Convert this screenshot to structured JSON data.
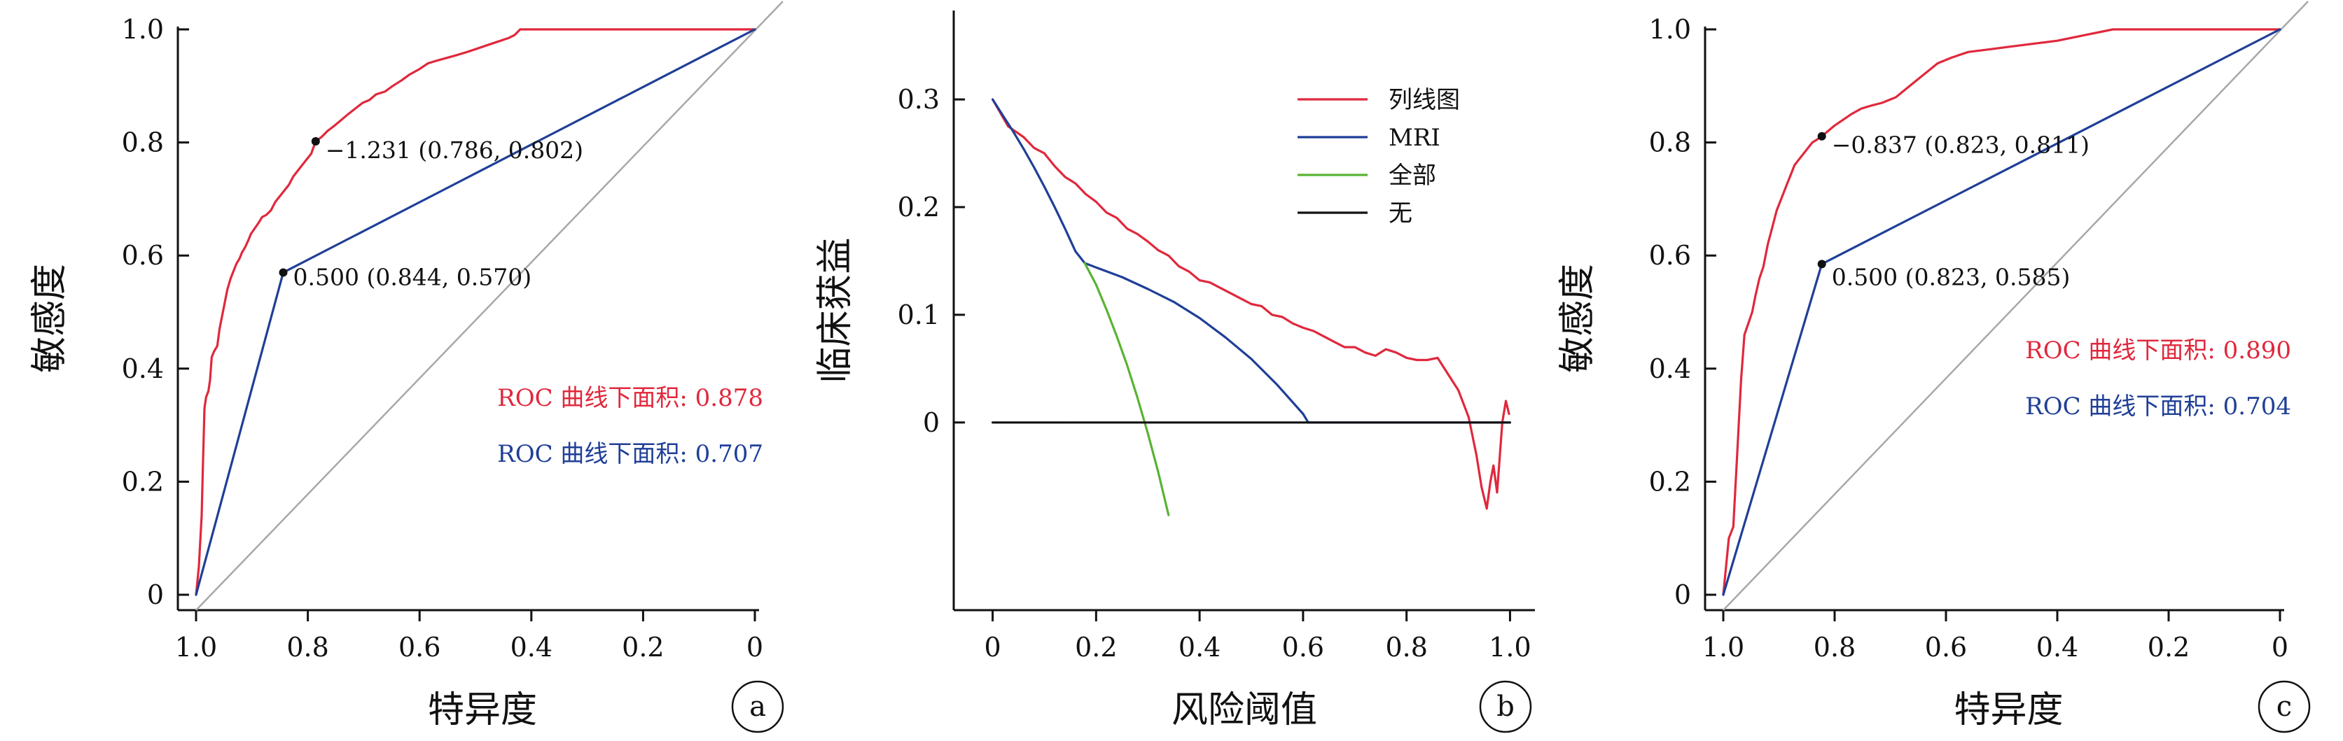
{
  "colors": {
    "red": "#e0283c",
    "blue": "#1f3f97",
    "green": "#58b432",
    "black": "#111111",
    "diag": "#a8a8a8"
  },
  "chart_data": [
    {
      "panel": "a",
      "type": "line",
      "xlabel": "特异度",
      "ylabel": "敏感度",
      "xlim": [
        1.0,
        0
      ],
      "ylim": [
        0,
        1.0
      ],
      "x_ticks": [
        1.0,
        0.8,
        0.6,
        0.4,
        0.2,
        0
      ],
      "x_tick_labels": [
        "1.0",
        "0.8",
        "0.6",
        "0.4",
        "0.2",
        "0"
      ],
      "y_ticks": [
        0,
        0.2,
        0.4,
        0.6,
        0.8,
        1.0
      ],
      "y_tick_labels": [
        "0",
        "0.2",
        "0.4",
        "0.6",
        "0.8",
        "1.0"
      ],
      "panel_label": "a",
      "series": [
        {
          "color": "#e0283c",
          "x": [
            1.0,
            0.995,
            0.99,
            0.988,
            0.985,
            0.982,
            0.978,
            0.975,
            0.972,
            0.968,
            0.962,
            0.958,
            0.952,
            0.948,
            0.944,
            0.938,
            0.932,
            0.928,
            0.922,
            0.918,
            0.912,
            0.906,
            0.902,
            0.895,
            0.888,
            0.882,
            0.874,
            0.866,
            0.858,
            0.85,
            0.842,
            0.834,
            0.826,
            0.818,
            0.81,
            0.802,
            0.794,
            0.786,
            0.775,
            0.765,
            0.752,
            0.74,
            0.728,
            0.715,
            0.702,
            0.69,
            0.678,
            0.662,
            0.648,
            0.632,
            0.618,
            0.6,
            0.585,
            0.568,
            0.55,
            0.532,
            0.515,
            0.5,
            0.485,
            0.47,
            0.455,
            0.44,
            0.43,
            0.42,
            0.3,
            0.2,
            0.1,
            0.0
          ],
          "y": [
            0.0,
            0.05,
            0.14,
            0.22,
            0.33,
            0.35,
            0.36,
            0.38,
            0.42,
            0.43,
            0.44,
            0.47,
            0.5,
            0.52,
            0.54,
            0.56,
            0.575,
            0.585,
            0.595,
            0.605,
            0.615,
            0.628,
            0.638,
            0.648,
            0.658,
            0.668,
            0.672,
            0.68,
            0.695,
            0.705,
            0.715,
            0.725,
            0.74,
            0.75,
            0.76,
            0.77,
            0.78,
            0.802,
            0.81,
            0.82,
            0.83,
            0.84,
            0.85,
            0.86,
            0.87,
            0.875,
            0.885,
            0.89,
            0.9,
            0.91,
            0.92,
            0.93,
            0.94,
            0.945,
            0.95,
            0.955,
            0.96,
            0.965,
            0.97,
            0.975,
            0.98,
            0.985,
            0.99,
            1.0,
            1.0,
            1.0,
            1.0,
            1.0
          ]
        },
        {
          "color": "#1f3f97",
          "x": [
            1.0,
            0.844,
            0.0
          ],
          "y": [
            0.0,
            0.57,
            1.0
          ]
        }
      ],
      "points": [
        {
          "x": 0.786,
          "y": 0.802,
          "label": "−1.231 (0.786, 0.802)"
        },
        {
          "x": 0.844,
          "y": 0.57,
          "label": "0.500 (0.844, 0.570)"
        }
      ],
      "auc": [
        {
          "text": "ROC 曲线下面积: 0.878",
          "color": "#e0283c"
        },
        {
          "text": "ROC 曲线下面积: 0.707",
          "color": "#1f3f97"
        }
      ]
    },
    {
      "panel": "b",
      "type": "line",
      "xlabel": "风险阈值",
      "ylabel": "临床获益",
      "xlim": [
        -0.04,
        1.04
      ],
      "ylim": [
        -0.16,
        0.38
      ],
      "x_ticks": [
        0,
        0.2,
        0.4,
        0.6,
        0.8,
        1.0
      ],
      "x_tick_labels": [
        "0",
        "0.2",
        "0.4",
        "0.6",
        "0.8",
        "1.0"
      ],
      "y_ticks": [
        0,
        0.1,
        0.2,
        0.3
      ],
      "y_tick_labels": [
        "0",
        "0.1",
        "0.2",
        "0.3"
      ],
      "panel_label": "b",
      "legend_position": "top-right",
      "series": [
        {
          "name": "列线图",
          "color": "#e0283c",
          "x": [
            0.0,
            0.03,
            0.06,
            0.08,
            0.1,
            0.12,
            0.14,
            0.16,
            0.18,
            0.2,
            0.22,
            0.24,
            0.26,
            0.28,
            0.3,
            0.32,
            0.34,
            0.36,
            0.38,
            0.4,
            0.42,
            0.44,
            0.46,
            0.48,
            0.5,
            0.52,
            0.54,
            0.56,
            0.58,
            0.6,
            0.62,
            0.64,
            0.66,
            0.68,
            0.7,
            0.72,
            0.74,
            0.76,
            0.78,
            0.8,
            0.82,
            0.84,
            0.86,
            0.88,
            0.9,
            0.92,
            0.935,
            0.945,
            0.955,
            0.962,
            0.968,
            0.975,
            0.985,
            0.992,
            0.998
          ],
          "y": [
            0.3,
            0.275,
            0.265,
            0.255,
            0.25,
            0.238,
            0.228,
            0.222,
            0.212,
            0.205,
            0.195,
            0.19,
            0.18,
            0.175,
            0.168,
            0.16,
            0.155,
            0.145,
            0.14,
            0.132,
            0.13,
            0.125,
            0.12,
            0.115,
            0.11,
            0.108,
            0.1,
            0.098,
            0.092,
            0.088,
            0.085,
            0.08,
            0.075,
            0.07,
            0.07,
            0.065,
            0.062,
            0.068,
            0.065,
            0.06,
            0.058,
            0.058,
            0.06,
            0.045,
            0.03,
            0.005,
            -0.03,
            -0.06,
            -0.08,
            -0.055,
            -0.04,
            -0.065,
            0.0,
            0.02,
            0.008
          ]
        },
        {
          "name": "MRI",
          "color": "#1f3f97",
          "x": [
            0.0,
            0.02,
            0.04,
            0.06,
            0.08,
            0.1,
            0.12,
            0.14,
            0.16,
            0.178,
            0.2,
            0.25,
            0.3,
            0.35,
            0.4,
            0.45,
            0.5,
            0.55,
            0.6,
            0.61,
            1.0
          ],
          "y": [
            0.3,
            0.285,
            0.27,
            0.254,
            0.237,
            0.219,
            0.2,
            0.18,
            0.159,
            0.148,
            0.144,
            0.135,
            0.124,
            0.112,
            0.097,
            0.079,
            0.059,
            0.035,
            0.008,
            0.0,
            0.0
          ]
        },
        {
          "name": "全部",
          "color": "#58b432",
          "x": [
            0.178,
            0.2,
            0.22,
            0.24,
            0.26,
            0.28,
            0.3,
            0.32,
            0.34
          ],
          "y": [
            0.148,
            0.128,
            0.105,
            0.08,
            0.053,
            0.023,
            -0.01,
            -0.046,
            -0.086
          ]
        },
        {
          "name": "无",
          "color": "#111111",
          "x": [
            0.0,
            1.0
          ],
          "y": [
            0.0,
            0.0
          ]
        }
      ]
    },
    {
      "panel": "c",
      "type": "line",
      "xlabel": "特异度",
      "ylabel": "敏感度",
      "xlim": [
        1.0,
        0
      ],
      "ylim": [
        0,
        1.0
      ],
      "x_ticks": [
        1.0,
        0.8,
        0.6,
        0.4,
        0.2,
        0
      ],
      "x_tick_labels": [
        "1.0",
        "0.8",
        "0.6",
        "0.4",
        "0.2",
        "0"
      ],
      "y_ticks": [
        0,
        0.2,
        0.4,
        0.6,
        0.8,
        1.0
      ],
      "y_tick_labels": [
        "0",
        "0.2",
        "0.4",
        "0.6",
        "0.8",
        "1.0"
      ],
      "panel_label": "c",
      "series": [
        {
          "color": "#e0283c",
          "x": [
            1.0,
            0.99,
            0.982,
            0.975,
            0.968,
            0.962,
            0.955,
            0.948,
            0.942,
            0.935,
            0.928,
            0.92,
            0.912,
            0.904,
            0.896,
            0.888,
            0.88,
            0.872,
            0.864,
            0.856,
            0.848,
            0.84,
            0.832,
            0.823,
            0.812,
            0.8,
            0.785,
            0.77,
            0.752,
            0.735,
            0.715,
            0.69,
            0.665,
            0.64,
            0.615,
            0.59,
            0.56,
            0.52,
            0.48,
            0.44,
            0.4,
            0.35,
            0.3,
            0.2,
            0.1,
            0.0
          ],
          "y": [
            0.0,
            0.1,
            0.12,
            0.25,
            0.38,
            0.46,
            0.48,
            0.5,
            0.53,
            0.56,
            0.58,
            0.62,
            0.65,
            0.68,
            0.7,
            0.72,
            0.74,
            0.76,
            0.77,
            0.78,
            0.79,
            0.8,
            0.805,
            0.811,
            0.82,
            0.83,
            0.84,
            0.85,
            0.86,
            0.865,
            0.87,
            0.88,
            0.9,
            0.92,
            0.94,
            0.95,
            0.96,
            0.965,
            0.97,
            0.975,
            0.98,
            0.99,
            1.0,
            1.0,
            1.0,
            1.0
          ]
        },
        {
          "color": "#1f3f97",
          "x": [
            1.0,
            0.823,
            0.0
          ],
          "y": [
            0.0,
            0.585,
            1.0
          ]
        }
      ],
      "points": [
        {
          "x": 0.823,
          "y": 0.811,
          "label": "−0.837 (0.823, 0.811)"
        },
        {
          "x": 0.823,
          "y": 0.585,
          "label": "0.500 (0.823, 0.585)"
        }
      ],
      "auc": [
        {
          "text": "ROC 曲线下面积: 0.890",
          "color": "#e0283c"
        },
        {
          "text": "ROC 曲线下面积: 0.704",
          "color": "#1f3f97"
        }
      ]
    }
  ]
}
